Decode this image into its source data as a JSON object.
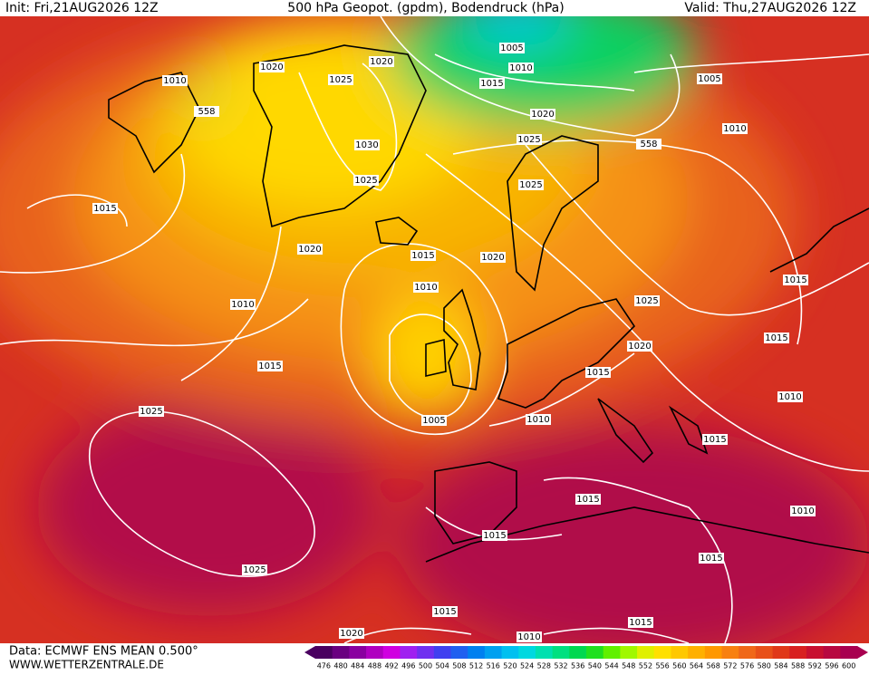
{
  "header": {
    "init": "Init: Fri,21AUG2026 12Z",
    "title": "500 hPa Geopot. (gpdm), Bodendruck (hPa)",
    "valid": "Valid: Thu,27AUG2026 12Z"
  },
  "footer": {
    "source": "Data: ECMWF ENS MEAN 0.500°",
    "site": "WWW.WETTERZENTRALE.DE"
  },
  "legend": {
    "labels": [
      476,
      480,
      484,
      488,
      492,
      496,
      500,
      504,
      508,
      512,
      516,
      520,
      524,
      528,
      532,
      536,
      540,
      544,
      548,
      552,
      556,
      560,
      564,
      568,
      572,
      576,
      580,
      584,
      588,
      592,
      596,
      600
    ],
    "colors": [
      "#4a0060",
      "#6a0080",
      "#8a00a0",
      "#b000c0",
      "#d000e0",
      "#a020f0",
      "#7030f0",
      "#4040f0",
      "#2060f0",
      "#0080f0",
      "#00a0f0",
      "#00c0f0",
      "#00d8e0",
      "#00e0b0",
      "#00e080",
      "#00d850",
      "#20e020",
      "#60f000",
      "#a0f800",
      "#e0f000",
      "#ffe000",
      "#ffc800",
      "#ffb000",
      "#ff9800",
      "#f88010",
      "#f06818",
      "#e85018",
      "#e03818",
      "#d82020",
      "#c81030",
      "#b80840",
      "#a80050"
    ]
  },
  "map": {
    "contour_labels": [
      1010,
      558,
      1020,
      1025,
      1020,
      1030,
      1025,
      1005,
      1010,
      1015,
      1020,
      1025,
      558,
      1005,
      1010,
      1025,
      1015,
      1020,
      1015,
      1020,
      1010,
      1010,
      1025,
      1015,
      1015,
      1020,
      1015,
      1015,
      1010,
      1005,
      1010,
      1025,
      1015,
      1015,
      1010,
      1015,
      1025,
      1015,
      1015,
      1015,
      1020,
      1010
    ]
  }
}
